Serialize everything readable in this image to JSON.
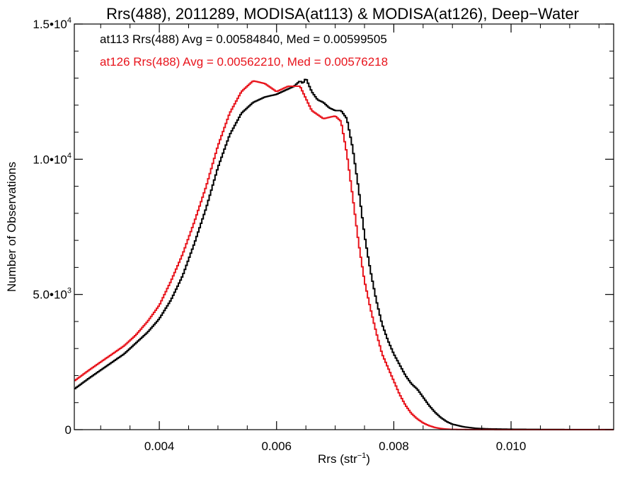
{
  "chart_data": {
    "type": "line",
    "title": "Rrs(488), 2011289, MODISA(at113) & MODISA(at126), Deep−Water",
    "xlabel": "Rrs (str",
    "xlabel_sup": "−1",
    "xlabel_close": ")",
    "ylabel": "Number of Observations",
    "xlim": [
      0.00255,
      0.01175
    ],
    "ylim": [
      0,
      15000
    ],
    "grid": false,
    "x_ticks": [
      {
        "value": 0.004,
        "label": "0.004"
      },
      {
        "value": 0.006,
        "label": "0.006"
      },
      {
        "value": 0.008,
        "label": "0.008"
      },
      {
        "value": 0.01,
        "label": "0.010"
      }
    ],
    "y_ticks": [
      {
        "value": 0,
        "label": "0"
      },
      {
        "value": 5000,
        "mant": "5.0•10",
        "exp": "3"
      },
      {
        "value": 10000,
        "mant": "1.0•10",
        "exp": "4"
      },
      {
        "value": 15000,
        "mant": "1.5•10",
        "exp": "4"
      }
    ],
    "annotations": [
      {
        "text": "at113 Rrs(488) Avg = 0.00584840, Med = 0.00599505",
        "color": "#000000"
      },
      {
        "text": "at126 Rrs(488) Avg = 0.00562210, Med = 0.00576218",
        "color": "#e8141c"
      }
    ],
    "series": [
      {
        "color": "#000000",
        "x": [
          0.00255,
          0.0028,
          0.003,
          0.0032,
          0.0034,
          0.0036,
          0.0038,
          0.004,
          0.0042,
          0.0044,
          0.0046,
          0.0048,
          0.005,
          0.0052,
          0.0054,
          0.0056,
          0.0058,
          0.006,
          0.0062,
          0.0063,
          0.0064,
          0.00645,
          0.0065,
          0.0066,
          0.0067,
          0.0068,
          0.0069,
          0.007,
          0.0071,
          0.0072,
          0.0073,
          0.0074,
          0.0075,
          0.0076,
          0.0077,
          0.0078,
          0.0079,
          0.008,
          0.0081,
          0.0082,
          0.0083,
          0.0084,
          0.0085,
          0.0086,
          0.0087,
          0.0088,
          0.0089,
          0.009,
          0.0092,
          0.0094,
          0.0096,
          0.01,
          0.0105,
          0.011,
          0.01175
        ],
        "y": [
          1500,
          1900,
          2200,
          2500,
          2800,
          3200,
          3600,
          4100,
          4800,
          5700,
          6900,
          8200,
          9700,
          10900,
          11700,
          12100,
          12300,
          12400,
          12600,
          12700,
          12900,
          12800,
          13000,
          12500,
          12200,
          12100,
          11900,
          11800,
          11800,
          11500,
          10400,
          8900,
          7200,
          5900,
          4800,
          3900,
          3300,
          2800,
          2400,
          2000,
          1700,
          1500,
          1200,
          900,
          650,
          450,
          300,
          200,
          100,
          50,
          30,
          15,
          8,
          4,
          2
        ]
      },
      {
        "color": "#e8141c",
        "x": [
          0.00255,
          0.0028,
          0.003,
          0.0032,
          0.0034,
          0.0036,
          0.0038,
          0.004,
          0.0042,
          0.0044,
          0.0046,
          0.0048,
          0.005,
          0.0052,
          0.0054,
          0.0056,
          0.0058,
          0.006,
          0.0062,
          0.0064,
          0.0066,
          0.0068,
          0.007,
          0.0071,
          0.0072,
          0.0073,
          0.0074,
          0.0075,
          0.0076,
          0.0077,
          0.0078,
          0.0079,
          0.008,
          0.0081,
          0.0082,
          0.0083,
          0.0084,
          0.0085,
          0.0086,
          0.0087,
          0.0088,
          0.0089,
          0.009,
          0.0092,
          0.0094,
          0.0096,
          0.01,
          0.0105,
          0.011,
          0.01175
        ],
        "y": [
          1800,
          2200,
          2500,
          2800,
          3100,
          3500,
          4000,
          4600,
          5500,
          6500,
          7700,
          9000,
          10500,
          11700,
          12500,
          12900,
          12800,
          12500,
          12700,
          12700,
          11800,
          11500,
          11600,
          11400,
          10200,
          8600,
          6900,
          5500,
          4500,
          3600,
          2800,
          2300,
          1800,
          1300,
          900,
          600,
          400,
          250,
          150,
          80,
          40,
          20,
          10,
          5,
          3,
          2,
          1,
          1,
          1,
          1
        ]
      }
    ]
  }
}
